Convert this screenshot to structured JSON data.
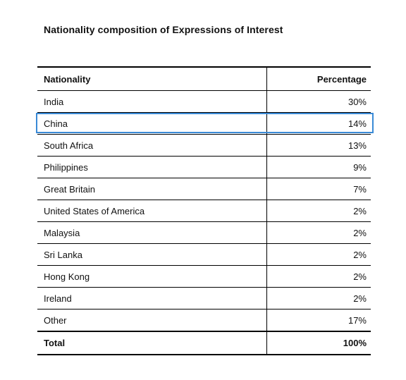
{
  "title": "Nationality composition of Expressions of Interest",
  "table": {
    "headers": {
      "nationality": "Nationality",
      "percentage": "Percentage"
    },
    "rows": [
      {
        "nationality": "India",
        "percentage": "30%"
      },
      {
        "nationality": "China",
        "percentage": "14%"
      },
      {
        "nationality": "South Africa",
        "percentage": "13%"
      },
      {
        "nationality": "Philippines",
        "percentage": "9%"
      },
      {
        "nationality": "Great Britain",
        "percentage": "7%"
      },
      {
        "nationality": "United States of America",
        "percentage": "2%"
      },
      {
        "nationality": "Malaysia",
        "percentage": "2%"
      },
      {
        "nationality": "Sri Lanka",
        "percentage": "2%"
      },
      {
        "nationality": "Hong Kong",
        "percentage": "2%"
      },
      {
        "nationality": "Ireland",
        "percentage": "2%"
      },
      {
        "nationality": "Other",
        "percentage": "17%"
      }
    ],
    "total": {
      "nationality": "Total",
      "percentage": "100%"
    }
  },
  "highlight": {
    "row_label": "China",
    "color": "#3a8ad6"
  }
}
